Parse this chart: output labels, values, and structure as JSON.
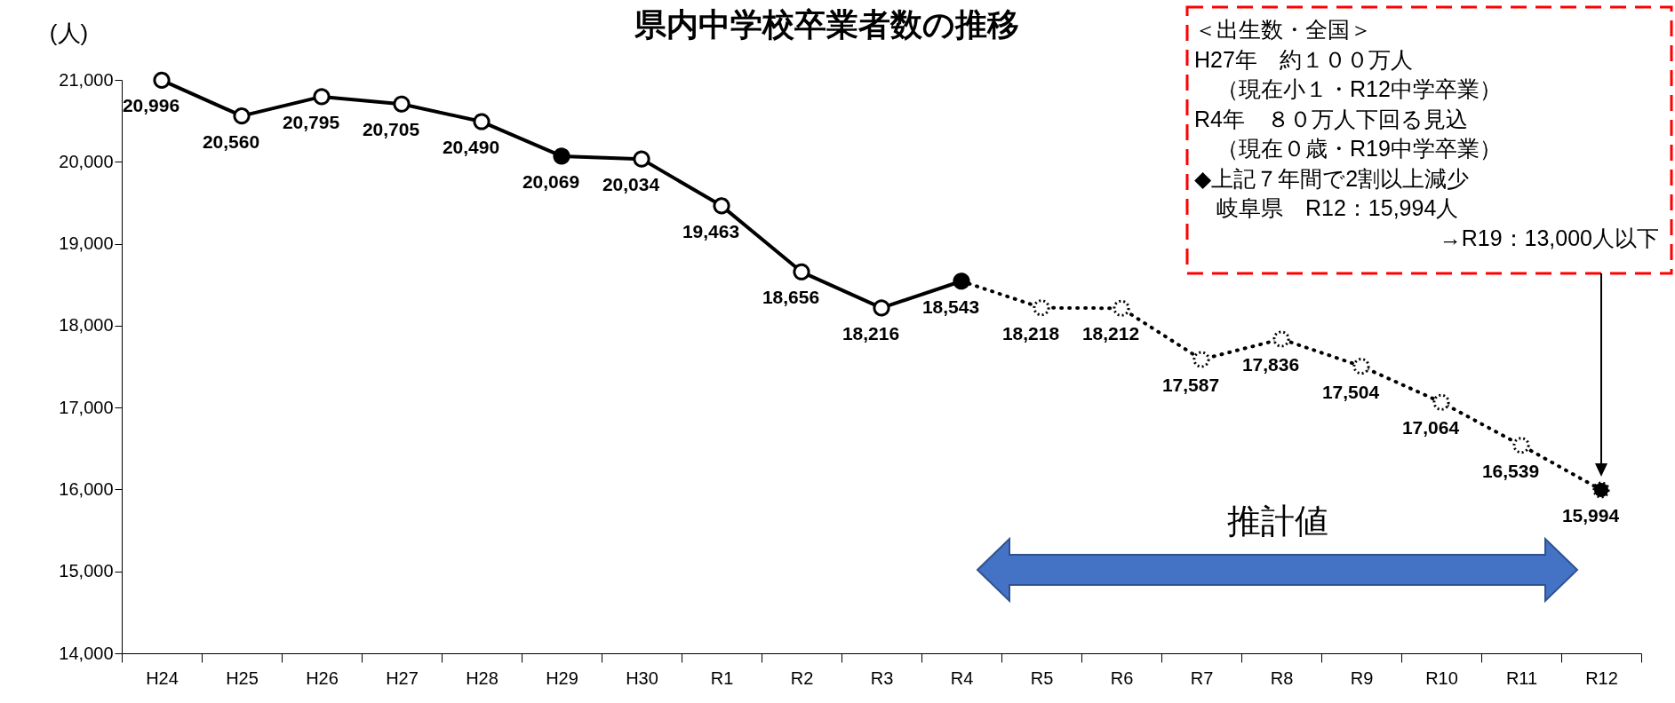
{
  "chart_data": {
    "type": "line",
    "title": "県内中学校卒業者数の推移",
    "ylabel": "(人)",
    "categories": [
      "H24",
      "H25",
      "H26",
      "H27",
      "H28",
      "H29",
      "H30",
      "R1",
      "R2",
      "R3",
      "R4",
      "R5",
      "R6",
      "R7",
      "R8",
      "R9",
      "R10",
      "R11",
      "R12"
    ],
    "series": [
      {
        "color": "#000000",
        "line_style": "solid",
        "colors": [
          "#ffffff",
          "#ffffff",
          "#ffffff",
          "#ffffff",
          "#ffffff",
          "#000000",
          "#ffffff",
          "#ffffff",
          "#ffffff",
          "#ffffff",
          "#000000",
          null,
          null,
          null,
          null,
          null,
          null,
          null,
          null
        ],
        "values": [
          20996,
          20560,
          20795,
          20705,
          20490,
          20069,
          20034,
          19463,
          18656,
          18216,
          18543,
          null,
          null,
          null,
          null,
          null,
          null,
          null,
          null
        ],
        "value_labels": [
          "20,996",
          "20,560",
          "20,795",
          "20,705",
          "20,490",
          "20,069",
          "20,034",
          "19,463",
          "18,656",
          "18,216",
          "18,543",
          null,
          null,
          null,
          null,
          null,
          null,
          null,
          null
        ]
      },
      {
        "color": "#000000",
        "line_style": "dotted",
        "colors": [
          null,
          null,
          null,
          null,
          null,
          null,
          null,
          null,
          null,
          null,
          null,
          "#ffffff",
          "#ffffff",
          "#ffffff",
          "#ffffff",
          "#ffffff",
          "#ffffff",
          "#ffffff",
          "#000000"
        ],
        "values": [
          null,
          null,
          null,
          null,
          null,
          null,
          null,
          null,
          null,
          null,
          18543,
          18218,
          18212,
          17587,
          17836,
          17504,
          17064,
          16539,
          15994
        ],
        "value_labels": [
          null,
          null,
          null,
          null,
          null,
          null,
          null,
          null,
          null,
          null,
          null,
          "18,218",
          "18,212",
          "17,587",
          "17,836",
          "17,504",
          "17,064",
          "16,539",
          "15,994"
        ]
      }
    ],
    "ylim": [
      14000,
      21000
    ],
    "yticks": [
      {
        "value": 14000,
        "label": "14,000"
      },
      {
        "value": 15000,
        "label": "15,000"
      },
      {
        "value": 16000,
        "label": "16,000"
      },
      {
        "value": 17000,
        "label": "17,000"
      },
      {
        "value": 18000,
        "label": "18,000"
      },
      {
        "value": 19000,
        "label": "19,000"
      },
      {
        "value": 20000,
        "label": "20,000"
      },
      {
        "value": 21000,
        "label": "21,000"
      }
    ],
    "grid": false,
    "marker": "circle",
    "annotations": [
      "＜出生数・全国＞",
      "H27年　約１００万人",
      "　（現在小１・R12中学卒業）",
      "R4年　８０万人下回る見込",
      "　（現在０歳・R19中学卒業）",
      "◆上記７年間で2割以上減少",
      "　岐阜県　R12：15,994人",
      "→R19：13,000人以下",
      "推計値"
    ]
  }
}
